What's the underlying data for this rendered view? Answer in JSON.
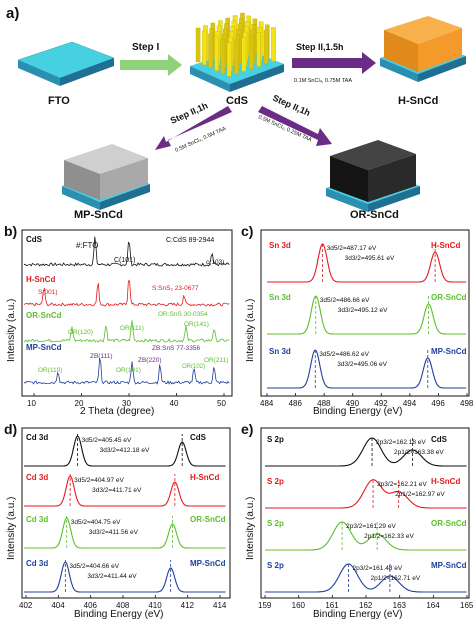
{
  "colors": {
    "black": "#111111",
    "red": "#e31a1c",
    "green": "#5cbf2a",
    "blue": "#1f3f9c",
    "step_arrow_green": "#8fd27a",
    "step_arrow_purple": "#6b2c86",
    "substrate_cyan": "#3ec6d8",
    "nanorod_yellow": "#f2e21a",
    "hsncd_orange": "#f39a2a",
    "mp_gray": "#a9a9a9",
    "or_black": "#222222"
  },
  "panel_a": {
    "label": "a)",
    "samples": {
      "fto": "FTO",
      "cds": "CdS",
      "hsncd": "H-SnCd",
      "mpsncd": "MP-SnCd",
      "orsncd": "OR-SnCd"
    },
    "steps": {
      "step1": "Step I",
      "step2_h": "Step II,1.5h",
      "step2_h_cond": "0.1M SnCl₄, 0.75M TAA",
      "step2_mp": "Step II,1h",
      "step2_mp_cond": "0.5M SnCl₄, 0.5M TAA",
      "step2_or": "Step II,1h",
      "step2_or_cond": "0.5M SnCl₄, 0.25M TAA"
    }
  },
  "panel_b": {
    "label": "b)",
    "xlabel": "2 Theta (degree)",
    "ylabel": "Intensity (a.u.)",
    "xticks": [
      "10",
      "20",
      "30",
      "40",
      "50"
    ],
    "annotations": {
      "cds": "CdS",
      "fto": "#:FTO",
      "hash": "#",
      "cds_ref": "C:CdS 89-2944",
      "c101": "C(101)",
      "c103": "c(103)",
      "hsncd": "H-SnCd",
      "s001": "S(001)",
      "sns2_ref": "S:SnS₂ 23-0677",
      "orsncd": "OR-SnCd",
      "or120": "OR(120)",
      "or111": "OR(111)",
      "ors_ref": "OR:SnS 30-0354",
      "or141": "OR(141)",
      "mpsncd": "MP-SnCd",
      "zb_ref": "ZB:SnS 77-3356",
      "zb111": "ZB(111)",
      "zb220": "ZB(220)",
      "or110": "OR(110)",
      "or101": "OR(101)",
      "or211": "OR(211)",
      "or_label": "OR(102)"
    }
  },
  "panel_c": {
    "label": "c)",
    "xlabel": "Binding Energy (eV)",
    "ylabel": "Intensity (a.u.)",
    "xticks": [
      "484",
      "486",
      "488",
      "490",
      "492",
      "494",
      "496",
      "498"
    ],
    "traces": [
      {
        "tag": "Sn 3d",
        "name": "H-SnCd",
        "p1": "3d5/2=487.17 eV",
        "p2": "3d3/2=495.61 eV"
      },
      {
        "tag": "Sn 3d",
        "name": "OR-SnCd",
        "p1": "3d5/2=486.66 eV",
        "p2": "3d3/2=495.12 eV"
      },
      {
        "tag": "Sn 3d",
        "name": "MP-SnCd",
        "p1": "3d5/2=486.62 eV",
        "p2": "3d3/2=495.06 eV"
      }
    ]
  },
  "panel_d": {
    "label": "d)",
    "xlabel": "Binding Energy (eV)",
    "ylabel": "Intensity (a.u.)",
    "xticks": [
      "402",
      "404",
      "406",
      "408",
      "410",
      "412",
      "414"
    ],
    "traces": [
      {
        "tag": "Cd 3d",
        "name": "CdS",
        "p1": "3d5/2=405.45 eV",
        "p2": "3d3/2=412.18 eV"
      },
      {
        "tag": "Cd 3d",
        "name": "H-SnCd",
        "p1": "3d5/2=404.97 eV",
        "p2": "3d3/2=411.71 eV"
      },
      {
        "tag": "Cd 3d",
        "name": "OR-SnCd",
        "p1": "3d5/2=404.75 eV",
        "p2": "3d3/2=411.56 eV"
      },
      {
        "tag": "Cd 3d",
        "name": "MP-SnCd",
        "p1": "3d5/2=404.66 eV",
        "p2": "3d3/2=411.44 eV"
      }
    ]
  },
  "panel_e": {
    "label": "e)",
    "xlabel": "Binding Energy (eV)",
    "ylabel": "Intensity (a.u.)",
    "xticks": [
      "159",
      "160",
      "161",
      "162",
      "163",
      "164",
      "165"
    ],
    "traces": [
      {
        "tag": "S 2p",
        "name": "CdS",
        "p1": "2p3/2=162.18 eV",
        "p2": "2p1/2=163.38 eV"
      },
      {
        "tag": "S 2p",
        "name": "H-SnCd",
        "p1": "2p3/2=162.21 eV",
        "p2": "2p1/2=162.97 eV"
      },
      {
        "tag": "S 2p",
        "name": "OR-SnCd",
        "p1": "2p3/2=161.29 eV",
        "p2": "2p1/2=162.33 eV"
      },
      {
        "tag": "S 2p",
        "name": "MP-SnCd",
        "p1": "2p3/2=161.48 eV",
        "p2": "2p1/2=162.71 eV"
      }
    ]
  },
  "chart_data": [
    {
      "type": "line",
      "panel": "c",
      "xlabel": "Binding Energy (eV)",
      "ylabel": "Intensity (a.u.)",
      "xlim": [
        483,
        498
      ],
      "series": [
        {
          "name": "H-SnCd",
          "peaks": [
            487.17,
            495.61
          ]
        },
        {
          "name": "OR-SnCd",
          "peaks": [
            486.66,
            495.12
          ]
        },
        {
          "name": "MP-SnCd",
          "peaks": [
            486.62,
            495.06
          ]
        }
      ]
    },
    {
      "type": "line",
      "panel": "d",
      "xlabel": "Binding Energy (eV)",
      "ylabel": "Intensity (a.u.)",
      "xlim": [
        402,
        415
      ],
      "series": [
        {
          "name": "CdS",
          "peaks": [
            405.45,
            412.18
          ]
        },
        {
          "name": "H-SnCd",
          "peaks": [
            404.97,
            411.71
          ]
        },
        {
          "name": "OR-SnCd",
          "peaks": [
            404.75,
            411.56
          ]
        },
        {
          "name": "MP-SnCd",
          "peaks": [
            404.66,
            411.44
          ]
        }
      ]
    },
    {
      "type": "line",
      "panel": "e",
      "xlabel": "Binding Energy (eV)",
      "ylabel": "Intensity (a.u.)",
      "xlim": [
        159,
        165
      ],
      "series": [
        {
          "name": "CdS",
          "peaks": [
            162.18,
            163.38
          ]
        },
        {
          "name": "H-SnCd",
          "peaks": [
            162.21,
            162.97
          ]
        },
        {
          "name": "OR-SnCd",
          "peaks": [
            161.29,
            162.33
          ]
        },
        {
          "name": "MP-SnCd",
          "peaks": [
            161.48,
            162.71
          ]
        }
      ]
    }
  ]
}
